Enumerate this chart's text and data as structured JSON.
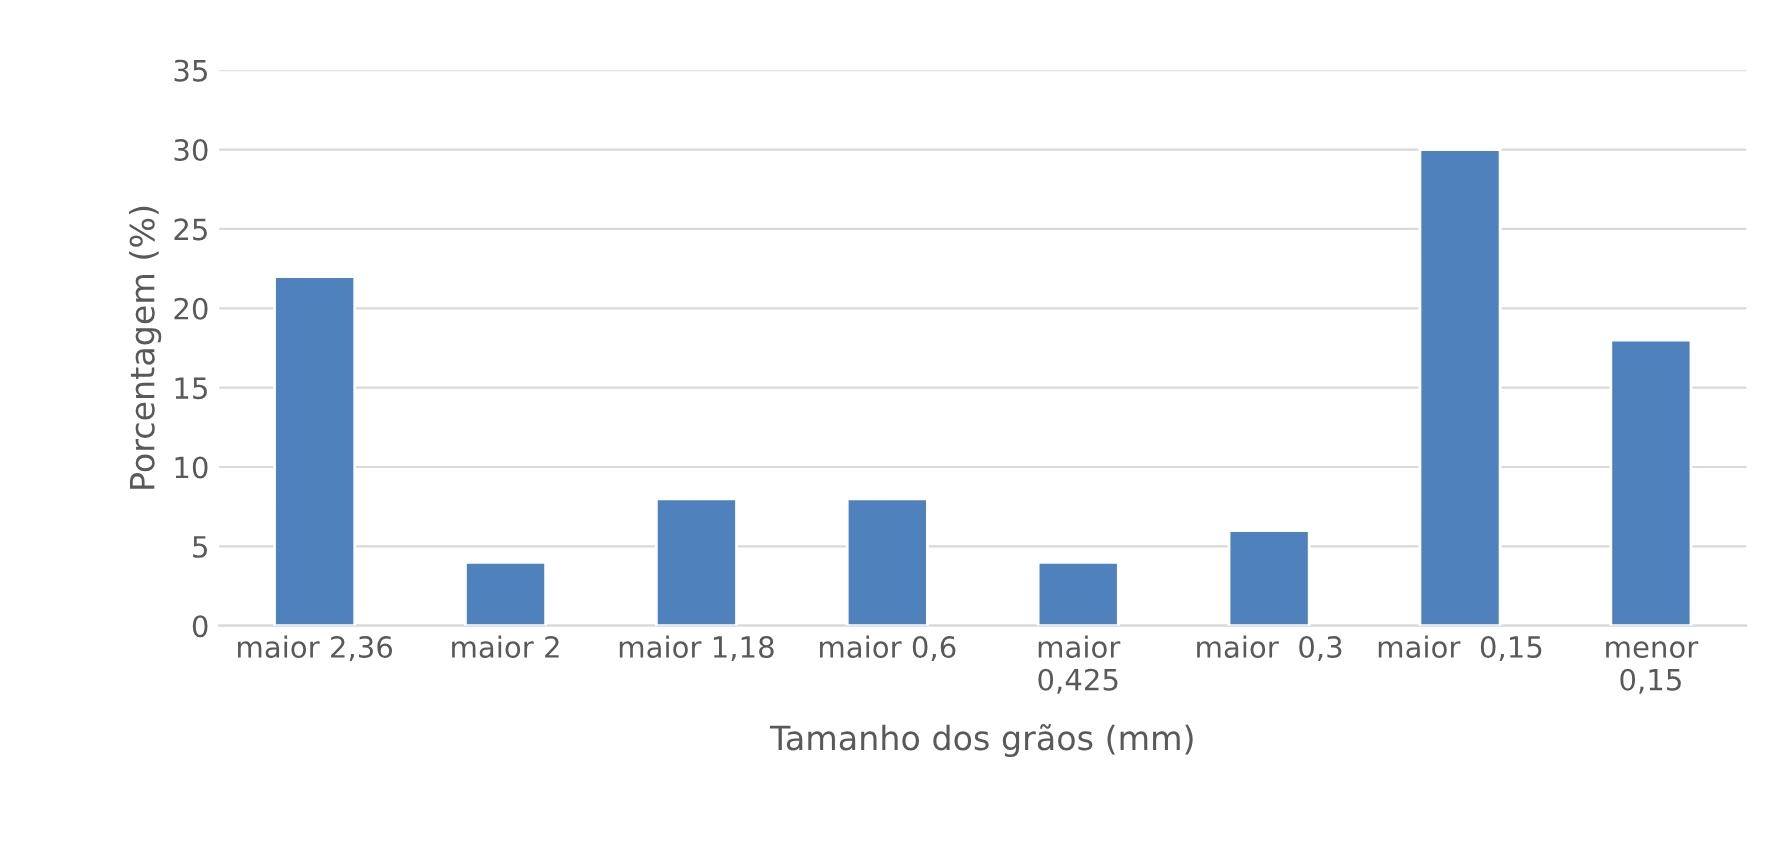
{
  "chart_data": {
    "type": "bar",
    "xlabel": "Tamanho dos grãos (mm)",
    "ylabel": "Porcentagem (%)",
    "categories": [
      "maior 2,36",
      "maior 2",
      "maior 1,18",
      "maior 0,6",
      "maior\n0,425",
      "maior  0,3",
      "maior  0,15",
      "menor\n0,15"
    ],
    "values": [
      22,
      4,
      8,
      8,
      4,
      6,
      30,
      18
    ],
    "color": "#4f81bd",
    "ylim": [
      0,
      35
    ],
    "yticks": [
      0,
      5,
      10,
      15,
      20,
      25,
      30,
      35
    ],
    "grid": "y"
  }
}
